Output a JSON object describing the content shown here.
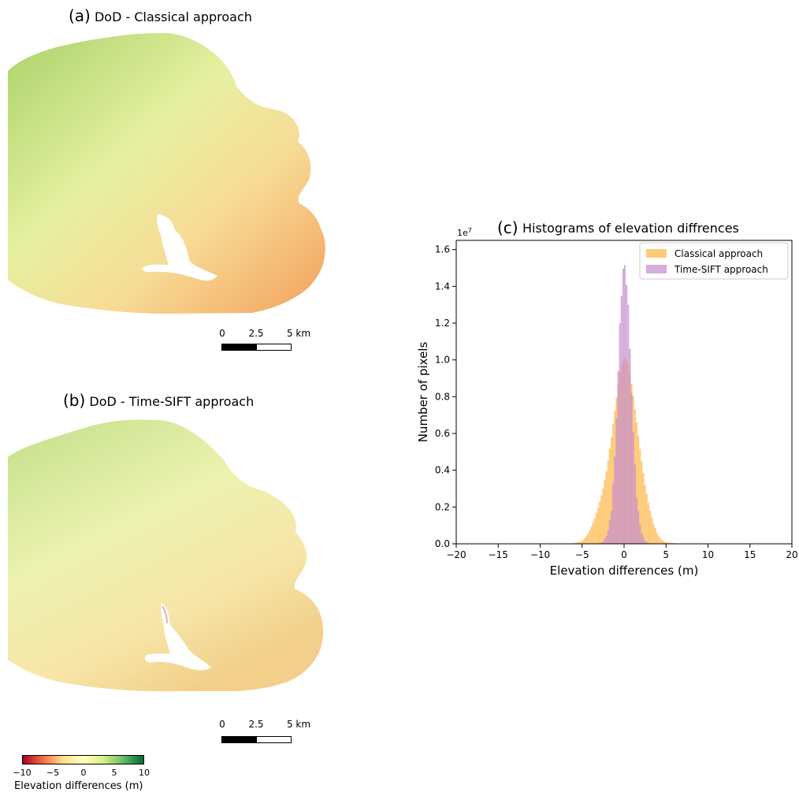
{
  "panel_a": {
    "letter": "(a)",
    "title": "DoD - Classical approach"
  },
  "panel_b": {
    "letter": "(b)",
    "title": "DoD - Time-SIFT approach"
  },
  "scalebar": {
    "labels": [
      "0",
      "2.5",
      "5 km"
    ]
  },
  "colorbar": {
    "ticks": [
      "−10",
      "−5",
      "0",
      "5",
      "10"
    ],
    "label": "Elevation differences (m)",
    "colors": [
      "#a50026",
      "#f46d43",
      "#fee08b",
      "#ffffbf",
      "#d9ef8b",
      "#66bd63",
      "#006837"
    ]
  },
  "chart_data": {
    "type": "histogram",
    "panel_letter": "(c)",
    "title": "Histograms of elevation diffrences",
    "xlabel": "Elevation differences (m)",
    "ylabel": "Number of pixels",
    "y_offset_label": "1e7",
    "xlim": [
      -20,
      20
    ],
    "ylim": [
      0,
      1.65
    ],
    "xticks": [
      -20,
      -15,
      -10,
      -5,
      0,
      5,
      10,
      15,
      20
    ],
    "xtick_labels": [
      "−20",
      "−15",
      "−10",
      "−5",
      "0",
      "5",
      "10",
      "15",
      "20"
    ],
    "yticks": [
      0.0,
      0.2,
      0.4,
      0.6,
      0.8,
      1.0,
      1.2,
      1.4,
      1.6
    ],
    "ytick_labels": [
      "0.0",
      "0.2",
      "0.4",
      "0.6",
      "0.8",
      "1.0",
      "1.2",
      "1.4",
      "1.6"
    ],
    "legend_position": "top-right",
    "series": [
      {
        "name": "Classical approach",
        "color": "#fdb94e",
        "opacity": 0.75,
        "bin_width": 0.2,
        "bin_centers": [
          -7.0,
          -6.0,
          -5.0,
          -4.5,
          -4.0,
          -3.5,
          -3.0,
          -2.5,
          -2.0,
          -1.5,
          -1.0,
          -0.5,
          0.0,
          0.5,
          1.0,
          1.5,
          2.0,
          2.5,
          3.0,
          3.5,
          4.0,
          4.5,
          5.0,
          6.0,
          7.0
        ],
        "counts": [
          0.0,
          0.003,
          0.015,
          0.04,
          0.08,
          0.14,
          0.21,
          0.3,
          0.42,
          0.58,
          0.76,
          0.93,
          1.02,
          0.98,
          0.84,
          0.66,
          0.48,
          0.32,
          0.2,
          0.11,
          0.05,
          0.02,
          0.008,
          0.003,
          0.0
        ]
      },
      {
        "name": "Time-SIFT approach",
        "color": "#c58bd0",
        "opacity": 0.7,
        "bin_width": 0.2,
        "bin_centers": [
          -4.0,
          -3.0,
          -2.5,
          -2.0,
          -1.5,
          -1.0,
          -0.5,
          0.0,
          0.5,
          1.0,
          1.5,
          2.0,
          2.5,
          3.0,
          4.0
        ],
        "counts": [
          0.0,
          0.003,
          0.012,
          0.05,
          0.18,
          0.55,
          1.2,
          1.57,
          1.3,
          0.7,
          0.25,
          0.07,
          0.015,
          0.003,
          0.0
        ]
      }
    ]
  }
}
